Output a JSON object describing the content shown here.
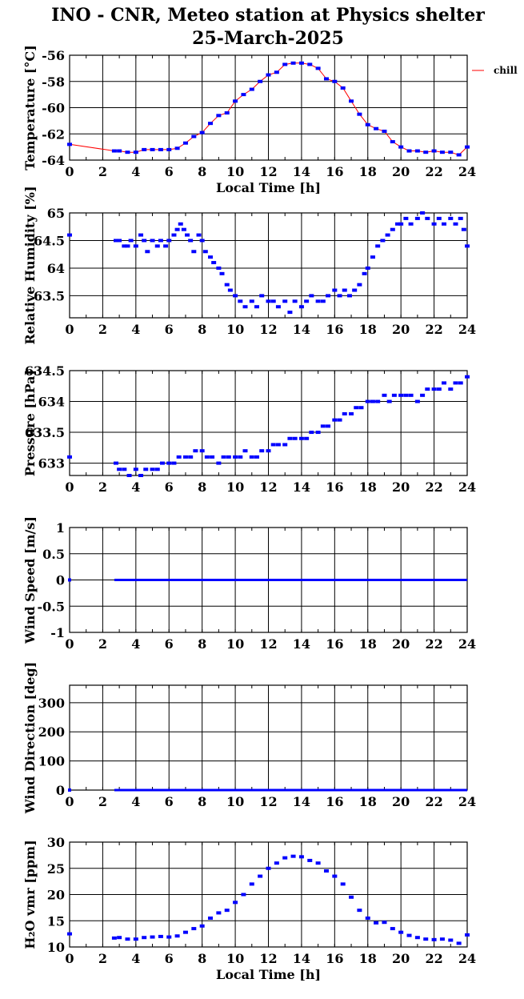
{
  "figure": {
    "title": "INO - CNR, Meteo station at Physics shelter",
    "subtitle": "25-March-2025",
    "legend_label": "chill",
    "colors": {
      "points": "#0000ff",
      "line": "#ff0000",
      "axes": "#000000",
      "grid": "#000000"
    }
  },
  "chart_data": [
    {
      "type": "scatter",
      "ylabel": "Temperature [°C]",
      "xlabel": "Local Time [h]",
      "xlim": [
        0,
        24
      ],
      "ylim": [
        -64,
        -56
      ],
      "xticks": [
        0,
        2,
        4,
        6,
        8,
        10,
        12,
        14,
        16,
        18,
        20,
        22,
        24
      ],
      "xtick_labels": [
        "0",
        "2",
        "4",
        "6",
        "8",
        "10",
        "12",
        "14",
        "16",
        "18",
        "20",
        "22",
        "24"
      ],
      "yticks": [
        -64,
        -62,
        -60,
        -58,
        -56
      ],
      "ytick_labels": [
        "-64",
        "-62",
        "-60",
        "-58",
        "-56"
      ],
      "grid": true,
      "legend_position": "right",
      "series": [
        {
          "name": "chill",
          "x": [
            0,
            2.7,
            3.0,
            3.5,
            4.0,
            4.5,
            5.0,
            5.5,
            6.0,
            6.5,
            7.0,
            7.5,
            8.0,
            8.5,
            9.0,
            9.5,
            10.0,
            10.5,
            11.0,
            11.5,
            12.0,
            12.5,
            13.0,
            13.5,
            14.0,
            14.5,
            15.0,
            15.5,
            16.0,
            16.5,
            17.0,
            17.5,
            18.0,
            18.5,
            19.0,
            19.5,
            20.0,
            20.5,
            21.0,
            21.5,
            22.0,
            22.5,
            23.0,
            23.5,
            24.0
          ],
          "y": [
            -62.8,
            -63.3,
            -63.3,
            -63.4,
            -63.4,
            -63.2,
            -63.2,
            -63.2,
            -63.2,
            -63.1,
            -62.7,
            -62.2,
            -61.9,
            -61.2,
            -60.6,
            -60.4,
            -59.5,
            -59.0,
            -58.6,
            -58.0,
            -57.5,
            -57.3,
            -56.7,
            -56.6,
            -56.6,
            -56.7,
            -57.0,
            -57.8,
            -58.0,
            -58.5,
            -59.5,
            -60.5,
            -61.3,
            -61.6,
            -61.8,
            -62.6,
            -63.0,
            -63.3,
            -63.3,
            -63.4,
            -63.3,
            -63.4,
            -63.4,
            -63.6,
            -63.0
          ]
        }
      ]
    },
    {
      "type": "scatter",
      "ylabel": "Relative Humidity [%]",
      "xlabel": "",
      "xlim": [
        0,
        24
      ],
      "ylim": [
        63.1,
        65.0
      ],
      "xticks": [
        0,
        2,
        4,
        6,
        8,
        10,
        12,
        14,
        16,
        18,
        20,
        22,
        24
      ],
      "xtick_labels": [
        "0",
        "2",
        "4",
        "6",
        "8",
        "10",
        "12",
        "14",
        "16",
        "18",
        "20",
        "22",
        "24"
      ],
      "yticks": [
        63.5,
        64,
        64.5,
        65
      ],
      "ytick_labels": [
        "63.5",
        "64",
        "64.5",
        "65"
      ],
      "grid": true,
      "series": [
        {
          "x": [
            0,
            2.8,
            3.0,
            3.3,
            3.5,
            3.7,
            4.0,
            4.3,
            4.5,
            4.7,
            5.0,
            5.3,
            5.5,
            5.8,
            6.0,
            6.3,
            6.5,
            6.7,
            6.9,
            7.1,
            7.3,
            7.5,
            7.8,
            8.0,
            8.2,
            8.5,
            8.7,
            9.0,
            9.2,
            9.5,
            9.7,
            10.0,
            10.3,
            10.6,
            11.0,
            11.3,
            11.6,
            12.0,
            12.3,
            12.6,
            13.0,
            13.3,
            13.6,
            14.0,
            14.3,
            14.6,
            15.0,
            15.3,
            15.6,
            16.0,
            16.3,
            16.6,
            16.9,
            17.2,
            17.5,
            17.8,
            18.0,
            18.3,
            18.6,
            18.9,
            19.2,
            19.5,
            19.8,
            20.0,
            20.3,
            20.6,
            21.0,
            21.3,
            21.6,
            22.0,
            22.3,
            22.6,
            23.0,
            23.3,
            23.6,
            23.8,
            24.0
          ],
          "y": [
            64.6,
            64.5,
            64.5,
            64.4,
            64.4,
            64.5,
            64.4,
            64.6,
            64.5,
            64.3,
            64.5,
            64.4,
            64.5,
            64.4,
            64.5,
            64.6,
            64.7,
            64.8,
            64.7,
            64.6,
            64.5,
            64.3,
            64.6,
            64.5,
            64.3,
            64.2,
            64.1,
            64.0,
            63.9,
            63.7,
            63.6,
            63.5,
            63.4,
            63.3,
            63.4,
            63.3,
            63.5,
            63.4,
            63.4,
            63.3,
            63.4,
            63.2,
            63.4,
            63.3,
            63.4,
            63.5,
            63.4,
            63.4,
            63.5,
            63.6,
            63.5,
            63.6,
            63.5,
            63.6,
            63.7,
            63.9,
            64.0,
            64.2,
            64.4,
            64.5,
            64.6,
            64.7,
            64.8,
            64.8,
            64.9,
            64.8,
            64.9,
            65.0,
            64.9,
            64.8,
            64.9,
            64.8,
            64.9,
            64.8,
            64.9,
            64.7,
            64.4
          ]
        }
      ]
    },
    {
      "type": "scatter",
      "ylabel": "Pressure [hPa]",
      "xlabel": "",
      "xlim": [
        0,
        24
      ],
      "ylim": [
        632.8,
        634.5
      ],
      "xticks": [
        0,
        2,
        4,
        6,
        8,
        10,
        12,
        14,
        16,
        18,
        20,
        22,
        24
      ],
      "xtick_labels": [
        "0",
        "2",
        "4",
        "6",
        "8",
        "10",
        "12",
        "14",
        "16",
        "18",
        "20",
        "22",
        "24"
      ],
      "yticks": [
        633,
        633.5,
        634,
        634.5
      ],
      "ytick_labels": [
        "633",
        "633.5",
        "634",
        "634.5"
      ],
      "grid": true,
      "series": [
        {
          "x": [
            0,
            2.8,
            3.0,
            3.3,
            3.6,
            4.0,
            4.3,
            4.6,
            5.0,
            5.3,
            5.6,
            6.0,
            6.3,
            6.6,
            7.0,
            7.3,
            7.6,
            8.0,
            8.3,
            8.6,
            9.0,
            9.3,
            9.6,
            10.0,
            10.3,
            10.6,
            11.0,
            11.3,
            11.6,
            12.0,
            12.3,
            12.6,
            13.0,
            13.3,
            13.6,
            14.0,
            14.3,
            14.6,
            15.0,
            15.3,
            15.6,
            16.0,
            16.3,
            16.6,
            17.0,
            17.3,
            17.6,
            18.0,
            18.3,
            18.6,
            19.0,
            19.3,
            19.6,
            20.0,
            20.3,
            20.6,
            21.0,
            21.3,
            21.6,
            22.0,
            22.3,
            22.6,
            23.0,
            23.3,
            23.6,
            24.0
          ],
          "y": [
            633.1,
            633.0,
            632.9,
            632.9,
            632.8,
            632.9,
            632.8,
            632.9,
            632.9,
            632.9,
            633.0,
            633.0,
            633.0,
            633.1,
            633.1,
            633.1,
            633.2,
            633.2,
            633.1,
            633.1,
            633.0,
            633.1,
            633.1,
            633.1,
            633.1,
            633.2,
            633.1,
            633.1,
            633.2,
            633.2,
            633.3,
            633.3,
            633.3,
            633.4,
            633.4,
            633.4,
            633.4,
            633.5,
            633.5,
            633.6,
            633.6,
            633.7,
            633.7,
            633.8,
            633.8,
            633.9,
            633.9,
            634.0,
            634.0,
            634.0,
            634.1,
            634.0,
            634.1,
            634.1,
            634.1,
            634.1,
            634.0,
            634.1,
            634.2,
            634.2,
            634.2,
            634.3,
            634.2,
            634.3,
            634.3,
            634.4
          ]
        }
      ]
    },
    {
      "type": "scatter",
      "ylabel": "Wind Speed [m/s]",
      "xlabel": "",
      "xlim": [
        0,
        24
      ],
      "ylim": [
        -1,
        1
      ],
      "xticks": [
        0,
        2,
        4,
        6,
        8,
        10,
        12,
        14,
        16,
        18,
        20,
        22,
        24
      ],
      "xtick_labels": [
        "0",
        "2",
        "4",
        "6",
        "8",
        "10",
        "12",
        "14",
        "16",
        "18",
        "20",
        "22",
        "24"
      ],
      "yticks": [
        -1,
        -0.5,
        0,
        0.5,
        1
      ],
      "ytick_labels": [
        "-1",
        "-0.5",
        "0",
        "0.5",
        "1"
      ],
      "grid": true,
      "series": [
        {
          "x": [
            0,
            2.7,
            6,
            9,
            12,
            15,
            18,
            21,
            24
          ],
          "y": [
            0,
            0,
            0,
            0,
            0,
            0,
            0,
            0,
            0
          ],
          "mode": "band"
        }
      ]
    },
    {
      "type": "scatter",
      "ylabel": "Wind Direction [deg]",
      "xlabel": "",
      "xlim": [
        0,
        24
      ],
      "ylim": [
        0,
        360
      ],
      "xticks": [
        0,
        2,
        4,
        6,
        8,
        10,
        12,
        14,
        16,
        18,
        20,
        22,
        24
      ],
      "xtick_labels": [
        "0",
        "2",
        "4",
        "6",
        "8",
        "10",
        "12",
        "14",
        "16",
        "18",
        "20",
        "22",
        "24"
      ],
      "yticks": [
        0,
        100,
        200,
        300
      ],
      "ytick_labels": [
        "0",
        "100",
        "200",
        "300"
      ],
      "grid": true,
      "series": [
        {
          "x": [
            0,
            2.7,
            6,
            9,
            12,
            15,
            18,
            21,
            24
          ],
          "y": [
            0,
            0,
            0,
            0,
            0,
            0,
            0,
            0,
            0
          ],
          "mode": "band"
        }
      ]
    },
    {
      "type": "scatter",
      "ylabel": "H₂O vmr [ppm]",
      "xlabel": "Local Time [h]",
      "xlim": [
        0,
        24
      ],
      "ylim": [
        10,
        30
      ],
      "xticks": [
        0,
        2,
        4,
        6,
        8,
        10,
        12,
        14,
        16,
        18,
        20,
        22,
        24
      ],
      "xtick_labels": [
        "0",
        "2",
        "4",
        "6",
        "8",
        "10",
        "12",
        "14",
        "16",
        "18",
        "20",
        "22",
        "24"
      ],
      "yticks": [
        10,
        15,
        20,
        25,
        30
      ],
      "ytick_labels": [
        "10",
        "15",
        "20",
        "25",
        "30"
      ],
      "grid": true,
      "series": [
        {
          "x": [
            0,
            2.7,
            3.0,
            3.5,
            4.0,
            4.5,
            5.0,
            5.5,
            6.0,
            6.5,
            7.0,
            7.5,
            8.0,
            8.5,
            9.0,
            9.5,
            10.0,
            10.5,
            11.0,
            11.5,
            12.0,
            12.5,
            13.0,
            13.5,
            14.0,
            14.5,
            15.0,
            15.5,
            16.0,
            16.5,
            17.0,
            17.5,
            18.0,
            18.5,
            19.0,
            19.5,
            20.0,
            20.5,
            21.0,
            21.5,
            22.0,
            22.5,
            23.0,
            23.5,
            24.0
          ],
          "y": [
            12.5,
            11.7,
            11.8,
            11.5,
            11.5,
            11.8,
            11.9,
            12.0,
            11.9,
            12.1,
            12.8,
            13.5,
            14.0,
            15.5,
            16.5,
            17.0,
            18.5,
            20.0,
            22.0,
            23.5,
            25.0,
            26.0,
            27.0,
            27.3,
            27.2,
            26.5,
            26.0,
            24.5,
            23.5,
            22.0,
            19.5,
            17.0,
            15.5,
            14.6,
            14.7,
            13.5,
            12.8,
            12.2,
            11.8,
            11.5,
            11.4,
            11.5,
            11.3,
            10.7,
            12.3
          ]
        }
      ]
    }
  ]
}
